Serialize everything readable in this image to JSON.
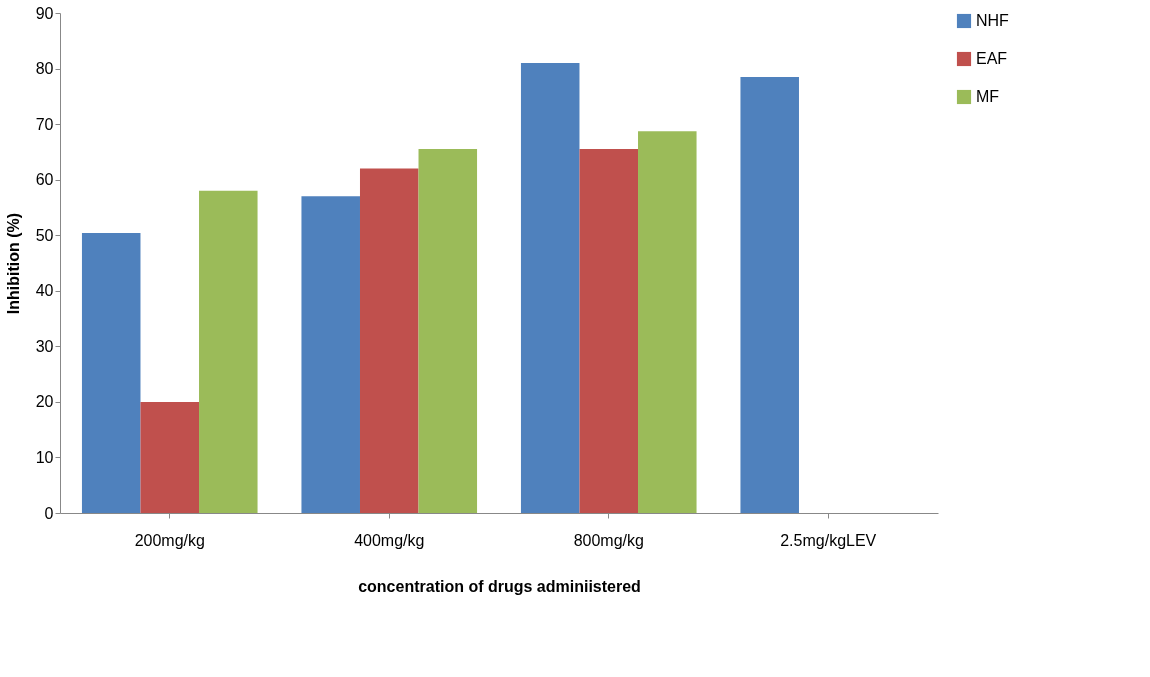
{
  "chart_data": {
    "type": "bar",
    "xlabel": "concentration of drugs adminiistered",
    "ylabel": "Inhibition (%)",
    "categories": [
      "200mg/kg",
      "400mg/kg",
      "800mg/kg",
      "2.5mg/kgLEV"
    ],
    "series": [
      {
        "name": "NHF",
        "color": "#4f81bd",
        "values": [
          50.4,
          57,
          81,
          78.5
        ]
      },
      {
        "name": "EAF",
        "color": "#c0504d",
        "values": [
          20,
          62,
          65.5,
          null
        ]
      },
      {
        "name": "MF",
        "color": "#9bbb59",
        "values": [
          58,
          65.5,
          68.7,
          null
        ]
      }
    ],
    "ylim": [
      0,
      90
    ],
    "yticks": [
      0,
      10,
      20,
      30,
      40,
      50,
      60,
      70,
      80,
      90
    ],
    "grid": false,
    "legend": "right"
  }
}
